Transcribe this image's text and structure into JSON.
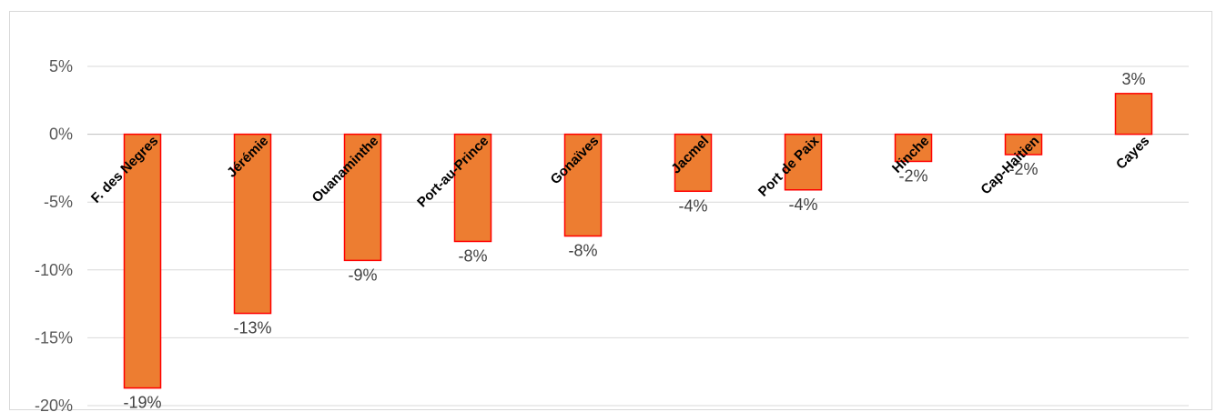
{
  "chart_data": {
    "type": "bar",
    "title": "",
    "xlabel": "",
    "ylabel": "",
    "categories": [
      "F. des Negres",
      "Jérémie",
      "Ouanaminthe",
      "Port-au-Prince",
      "Gonaïves",
      "Jacmel",
      "Port de Paix",
      "Hinche",
      "Cap-Haitien",
      "Cayes"
    ],
    "values": [
      -18.7,
      -13.2,
      -9.3,
      -7.9,
      -7.5,
      -4.2,
      -4.1,
      -2.0,
      -1.5,
      3.0
    ],
    "data_labels": [
      "-19%",
      "-13%",
      "-9%",
      "-8%",
      "-8%",
      "-4%",
      "-4%",
      "-2%",
      "-2%",
      "3%"
    ],
    "ylim": [
      -20,
      5
    ],
    "yticks": [
      5,
      0,
      -5,
      -10,
      -15,
      -20
    ],
    "ytick_labels": [
      "5%",
      "0%",
      "-5%",
      "-10%",
      "-15%",
      "-20%"
    ],
    "grid": true,
    "legend": "none",
    "colors": {
      "bar_fill": "#ED7D31",
      "bar_edge": "#FF0000",
      "grid": "#d9d9d9",
      "zero_line": "#bfbfbf"
    }
  }
}
